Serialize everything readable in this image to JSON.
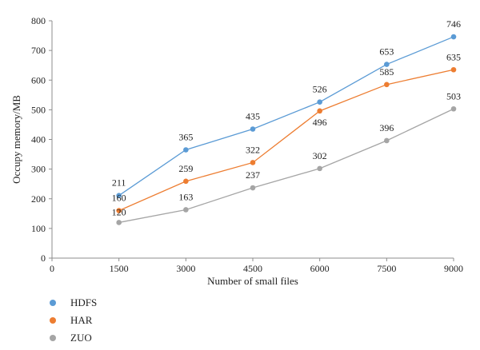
{
  "chart_data": {
    "type": "line",
    "xlabel": "Number of small files",
    "ylabel": "Occupy memory/MB",
    "xlim": [
      0,
      9000
    ],
    "ylim": [
      0,
      800
    ],
    "xticks": [
      "0",
      "1500",
      "3000",
      "4500",
      "6000",
      "7500",
      "9000"
    ],
    "yticks": [
      "0",
      "100",
      "200",
      "300",
      "400",
      "500",
      "600",
      "700",
      "800"
    ],
    "x": [
      1500,
      3000,
      4500,
      6000,
      7500,
      9000
    ],
    "grid": false,
    "legend_position": "bottom-left",
    "series": [
      {
        "name": "HDFS",
        "color": "#5b9bd5",
        "values": [
          211,
          365,
          435,
          526,
          653,
          746
        ]
      },
      {
        "name": "HAR",
        "color": "#ed7d31",
        "values": [
          160,
          259,
          322,
          496,
          585,
          635
        ]
      },
      {
        "name": "ZUO",
        "color": "#a5a5a5",
        "values": [
          120,
          163,
          237,
          302,
          396,
          503
        ]
      }
    ]
  }
}
